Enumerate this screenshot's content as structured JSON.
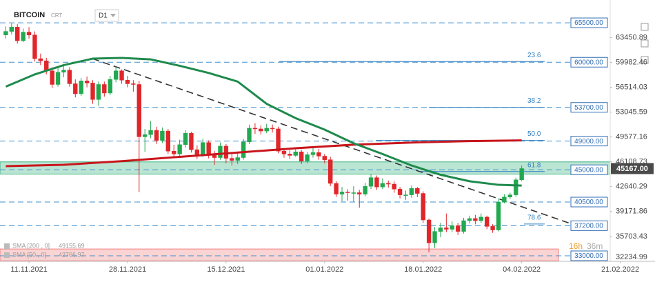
{
  "header": {
    "symbol": "BITCOIN",
    "tag": "CRT",
    "timeframe": "D1"
  },
  "chart_data": {
    "type": "candlestick",
    "up_color": "#22a84f",
    "down_color": "#e0262b",
    "x": [
      "07.11.2021",
      "08.11.2021",
      "09.11.2021",
      "10.11.2021",
      "11.11.2021",
      "12.11.2021",
      "13.11.2021",
      "14.11.2021",
      "15.11.2021",
      "16.11.2021",
      "17.11.2021",
      "18.11.2021",
      "19.11.2021",
      "20.11.2021",
      "21.11.2021",
      "22.11.2021",
      "23.11.2021",
      "24.11.2021",
      "25.11.2021",
      "26.11.2021",
      "27.11.2021",
      "28.11.2021",
      "29.11.2021",
      "30.11.2021",
      "01.12.2021",
      "02.12.2021",
      "03.12.2021",
      "04.12.2021",
      "05.12.2021",
      "06.12.2021",
      "07.12.2021",
      "08.12.2021",
      "09.12.2021",
      "10.12.2021",
      "11.12.2021",
      "12.12.2021",
      "13.12.2021",
      "14.12.2021",
      "15.12.2021",
      "16.12.2021",
      "17.12.2021",
      "18.12.2021",
      "19.12.2021",
      "20.12.2021",
      "21.12.2021",
      "22.12.2021",
      "23.12.2021",
      "24.12.2021",
      "25.12.2021",
      "26.12.2021",
      "27.12.2021",
      "28.12.2021",
      "29.12.2021",
      "30.12.2021",
      "31.12.2021",
      "01.01.2022",
      "02.01.2022",
      "03.01.2022",
      "04.01.2022",
      "05.01.2022",
      "06.01.2022",
      "07.01.2022",
      "08.01.2022",
      "09.01.2022",
      "10.01.2022",
      "11.01.2022",
      "12.01.2022",
      "13.01.2022",
      "14.01.2022",
      "15.01.2022",
      "16.01.2022",
      "17.01.2022",
      "18.01.2022",
      "19.01.2022",
      "20.01.2022",
      "21.01.2022",
      "22.01.2022",
      "23.01.2022",
      "24.01.2022",
      "25.01.2022",
      "26.01.2022",
      "27.01.2022",
      "28.01.2022",
      "29.01.2022",
      "30.01.2022",
      "31.01.2022",
      "01.02.2022",
      "02.02.2022",
      "03.02.2022",
      "04.02.2022"
    ],
    "open": [
      63800,
      64300,
      64900,
      63000,
      64200,
      63800,
      60500,
      60200,
      58800,
      56900,
      58600,
      58900,
      57000,
      55600,
      57400,
      57100,
      54800,
      56900,
      55700,
      57600,
      58800,
      57500,
      57000,
      56900,
      49600,
      49900,
      50500,
      49100,
      50400,
      47600,
      47200,
      48500,
      50100,
      47800,
      47100,
      48800,
      47000,
      46700,
      48300,
      46600,
      46300,
      46700,
      48900,
      50800,
      50700,
      50400,
      50800,
      50700,
      47600,
      47200,
      47000,
      47500,
      46200,
      47100,
      47400,
      46900,
      46400,
      43100,
      41600,
      41900,
      41800,
      41800,
      41600,
      42700,
      43900,
      42600,
      43100,
      43000,
      42300,
      41500,
      41500,
      42400,
      41700,
      38000,
      34800,
      36400,
      36900,
      36700,
      37200,
      36400,
      37900,
      38200,
      37900,
      38400,
      37100,
      36600,
      40500,
      41200,
      41500,
      43600
    ],
    "high": [
      65000,
      65400,
      65300,
      64700,
      64900,
      64300,
      61200,
      60600,
      59300,
      59200,
      59700,
      59300,
      57600,
      57800,
      58000,
      57500,
      57300,
      57300,
      58100,
      59400,
      59000,
      58100,
      57500,
      57400,
      50700,
      51800,
      51000,
      50900,
      50700,
      48500,
      49200,
      50500,
      50300,
      48400,
      49300,
      49100,
      47600,
      48800,
      48600,
      47300,
      47400,
      49300,
      51300,
      51500,
      51200,
      51400,
      51300,
      51000,
      48000,
      47700,
      48000,
      47800,
      47500,
      48000,
      47900,
      47200,
      46800,
      43400,
      42600,
      42300,
      42700,
      42200,
      43200,
      44400,
      44200,
      43800,
      43500,
      43400,
      42600,
      42100,
      42800,
      42600,
      42000,
      38200,
      37000,
      37600,
      38900,
      37800,
      37600,
      38300,
      38600,
      38700,
      38900,
      38600,
      37400,
      41000,
      41600,
      41800,
      43900,
      45600
    ],
    "low": [
      63300,
      63900,
      62600,
      62800,
      63300,
      60100,
      59600,
      58300,
      56400,
      56600,
      57900,
      56600,
      55100,
      55300,
      56500,
      54200,
      53900,
      55200,
      55400,
      57200,
      57000,
      56500,
      55900,
      41900,
      47500,
      49400,
      48600,
      48700,
      47200,
      46800,
      46900,
      48100,
      47400,
      46500,
      46800,
      46600,
      45700,
      46400,
      45900,
      45600,
      45800,
      46400,
      48600,
      50000,
      49900,
      50100,
      50200,
      47300,
      46700,
      46500,
      46800,
      45800,
      45900,
      46700,
      46400,
      45900,
      42700,
      41200,
      40600,
      40700,
      40500,
      39700,
      41300,
      42300,
      42200,
      42300,
      42500,
      41800,
      41000,
      40800,
      41100,
      41200,
      37600,
      33500,
      34100,
      35600,
      36300,
      36300,
      35900,
      36100,
      37500,
      37400,
      37600,
      36700,
      36200,
      36400,
      40300,
      40900,
      41200,
      43400
    ],
    "close": [
      64300,
      64900,
      63000,
      64200,
      63800,
      60500,
      60200,
      58800,
      56900,
      58600,
      58900,
      57000,
      55600,
      57400,
      57100,
      54800,
      56900,
      55700,
      57600,
      58800,
      57500,
      57000,
      56900,
      49600,
      49900,
      50500,
      49100,
      50400,
      47600,
      47200,
      48500,
      50100,
      47800,
      47100,
      48800,
      47000,
      46700,
      48300,
      46600,
      46300,
      46700,
      48900,
      50800,
      50700,
      50400,
      50800,
      50700,
      47600,
      47200,
      47000,
      47500,
      46200,
      47100,
      47400,
      46900,
      46400,
      43100,
      41600,
      41900,
      41800,
      41800,
      41600,
      42700,
      43900,
      42600,
      43100,
      43000,
      42300,
      41500,
      41500,
      42400,
      41700,
      38000,
      34800,
      36400,
      36900,
      36700,
      37200,
      36400,
      37900,
      38200,
      37900,
      38400,
      37100,
      36600,
      40500,
      41200,
      41500,
      43600,
      45167
    ],
    "xlim": [
      "06.11.2021",
      "27.02.2022"
    ],
    "xticks": [
      "11.11.2021",
      "28.11.2021",
      "15.12.2021",
      "01.01.2022",
      "18.01.2022",
      "04.02.2022",
      "21.02.2022"
    ],
    "ylim": [
      32230,
      68680
    ],
    "yticks": [
      63450.89,
      59982.46,
      56514.03,
      53045.59,
      49577.16,
      46108.73,
      42640.29,
      39171.86,
      35703.43,
      32234.99
    ],
    "series": [
      {
        "name": "SMA [200 , 0]",
        "value": 49155.69,
        "color": "#c8151b",
        "x": [
          "07.11.2021",
          "17.11.2021",
          "27.11.2021",
          "07.12.2021",
          "17.12.2021",
          "27.12.2021",
          "06.01.2022",
          "16.01.2022",
          "26.01.2022",
          "04.02.2022"
        ],
        "values": [
          45500,
          45700,
          46200,
          46800,
          47400,
          48000,
          48500,
          48800,
          49000,
          49100
        ]
      },
      {
        "name": "SMA [50 , 0]",
        "value": 42766.97,
        "color": "#1e8a4c",
        "x": [
          "07.11.2021",
          "12.11.2021",
          "17.11.2021",
          "22.11.2021",
          "27.11.2021",
          "02.12.2021",
          "07.12.2021",
          "12.12.2021",
          "17.12.2021",
          "22.12.2021",
          "27.12.2021",
          "01.01.2022",
          "06.01.2022",
          "11.01.2022",
          "16.01.2022",
          "21.01.2022",
          "26.01.2022",
          "31.01.2022",
          "04.02.2022"
        ],
        "values": [
          56600,
          58300,
          59600,
          60500,
          60600,
          60400,
          59500,
          58500,
          57300,
          54200,
          52200,
          50600,
          48700,
          47200,
          45600,
          44300,
          43400,
          42900,
          42800
        ]
      }
    ],
    "levels": [
      {
        "value": 65500,
        "label": "65500.00"
      },
      {
        "value": 60000,
        "label": "60000.00"
      },
      {
        "value": 53700,
        "label": "53700.00"
      },
      {
        "value": 49000,
        "label": "49000.00"
      },
      {
        "value": 45000,
        "label": "45000.00"
      },
      {
        "value": 40500,
        "label": "40500.00"
      },
      {
        "value": 37200,
        "label": "37200.00"
      },
      {
        "value": 33000,
        "label": "33000.00"
      }
    ],
    "fibonacci": [
      {
        "label": "23.6",
        "value": 60100
      },
      {
        "label": "38.2",
        "value": 53730
      },
      {
        "label": "50.0",
        "value": 49100
      },
      {
        "label": "61.8",
        "value": 44760
      },
      {
        "label": "78.6",
        "value": 37440
      }
    ],
    "zones": [
      {
        "range": [
          44400,
          46100
        ],
        "color": "#3cb482"
      },
      {
        "range": [
          32300,
          33950
        ],
        "color": "#f08080"
      }
    ],
    "trendline": {
      "x": [
        "22.11.2021",
        "13.02.2022"
      ],
      "values": [
        60480,
        37340
      ]
    },
    "last_price": {
      "value": 45167,
      "label": "45167.00"
    },
    "timer": [
      "16h",
      "36m"
    ]
  }
}
